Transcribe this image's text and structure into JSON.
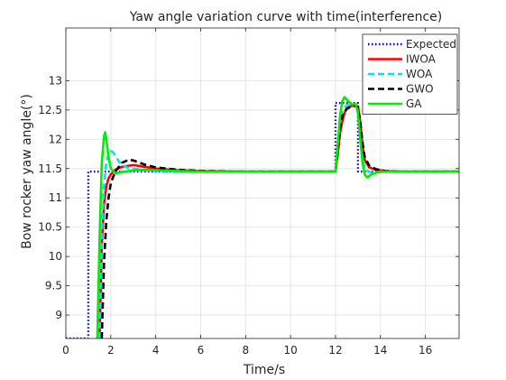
{
  "chart_data": {
    "type": "line",
    "title": "Yaw angle variation curve with time(interference)",
    "xlabel": "Time/s",
    "ylabel": "Bow  rocker yaw angle(°)",
    "xlim": [
      0,
      17.5
    ],
    "ylim": [
      8.6,
      13.9
    ],
    "xticks": [
      0,
      2,
      4,
      6,
      8,
      10,
      12,
      14,
      16
    ],
    "yticks": [
      9,
      9.5,
      10,
      10.5,
      11,
      11.5,
      12,
      12.5,
      13
    ],
    "xtick_labels": [
      "0",
      "2",
      "4",
      "6",
      "8",
      "10",
      "12",
      "14",
      "16"
    ],
    "ytick_labels": [
      "9",
      "9.5",
      "10",
      "10.5",
      "11",
      "11.5",
      "12",
      "12.5",
      "13"
    ],
    "grid": true,
    "legend_position": "top-right",
    "series": [
      {
        "name": "Expected",
        "color": "#0000cc",
        "style": "dotted",
        "x": [
          0,
          1,
          1,
          12,
          12,
          13,
          13,
          17.5
        ],
        "y": [
          8.6,
          8.6,
          11.45,
          11.45,
          12.62,
          12.62,
          11.45,
          11.45
        ]
      },
      {
        "name": "IWOA",
        "color": "#ff0000",
        "style": "solid",
        "x": [
          1.5,
          1.6,
          1.7,
          1.8,
          1.9,
          2.0,
          2.2,
          2.5,
          3.0,
          3.5,
          4.0,
          5.0,
          6.0,
          8.0,
          10.0,
          12.0,
          12.1,
          12.2,
          12.3,
          12.4,
          12.5,
          12.7,
          12.9,
          13.0,
          13.1,
          13.2,
          13.3,
          13.5,
          13.8,
          14.2,
          15.0,
          17.5
        ],
        "y": [
          8.6,
          10.2,
          10.9,
          11.2,
          11.33,
          11.4,
          11.48,
          11.53,
          11.56,
          11.53,
          11.5,
          11.47,
          11.46,
          11.45,
          11.45,
          11.45,
          11.75,
          12.1,
          12.3,
          12.45,
          12.53,
          12.57,
          12.58,
          12.56,
          12.3,
          11.9,
          11.65,
          11.52,
          11.48,
          11.46,
          11.45,
          11.45
        ]
      },
      {
        "name": "WOA",
        "color": "#00e5ee",
        "style": "dashed",
        "x": [
          1.5,
          1.6,
          1.7,
          1.8,
          1.9,
          2.0,
          2.1,
          2.2,
          2.4,
          2.7,
          3.0,
          3.5,
          4.0,
          5.0,
          6.0,
          8.0,
          10.0,
          12.0,
          12.1,
          12.2,
          12.3,
          12.5,
          12.7,
          12.9,
          13.0,
          13.1,
          13.2,
          13.3,
          13.5,
          13.8,
          14.2,
          15.0,
          17.5
        ],
        "y": [
          8.6,
          10.4,
          11.2,
          11.6,
          11.75,
          11.8,
          11.78,
          11.72,
          11.6,
          11.52,
          11.5,
          11.47,
          11.46,
          11.45,
          11.45,
          11.45,
          11.45,
          11.45,
          11.9,
          12.3,
          12.5,
          12.58,
          12.6,
          12.58,
          12.52,
          12.1,
          11.7,
          11.5,
          11.44,
          11.44,
          11.45,
          11.45,
          11.45
        ]
      },
      {
        "name": "GWO",
        "color": "#000000",
        "style": "dashed",
        "x": [
          1.6,
          1.7,
          1.8,
          1.9,
          2.0,
          2.2,
          2.5,
          2.8,
          3.0,
          3.5,
          4.0,
          5.0,
          6.0,
          8.0,
          10.0,
          12.0,
          12.1,
          12.2,
          12.3,
          12.5,
          12.7,
          12.9,
          13.0,
          13.1,
          13.2,
          13.3,
          13.5,
          13.8,
          14.2,
          15.0,
          17.5
        ],
        "y": [
          8.6,
          9.9,
          10.6,
          11.0,
          11.25,
          11.45,
          11.6,
          11.65,
          11.64,
          11.57,
          11.52,
          11.48,
          11.46,
          11.45,
          11.45,
          11.45,
          11.8,
          12.2,
          12.4,
          12.52,
          12.56,
          12.57,
          12.55,
          12.3,
          11.95,
          11.7,
          11.55,
          11.49,
          11.46,
          11.45,
          11.45
        ]
      },
      {
        "name": "GA",
        "color": "#00ee00",
        "style": "solid",
        "x": [
          1.4,
          1.5,
          1.6,
          1.7,
          1.75,
          1.8,
          1.9,
          2.0,
          2.2,
          2.5,
          3.0,
          3.5,
          4.0,
          5.0,
          6.0,
          8.0,
          10.0,
          12.0,
          12.1,
          12.2,
          12.3,
          12.4,
          12.5,
          12.7,
          12.9,
          13.0,
          13.1,
          13.2,
          13.3,
          13.4,
          13.6,
          13.9,
          14.3,
          15.0,
          17.5
        ],
        "y": [
          8.6,
          10.3,
          11.6,
          12.05,
          12.12,
          12.0,
          11.7,
          11.5,
          11.42,
          11.44,
          11.47,
          11.48,
          11.47,
          11.46,
          11.45,
          11.45,
          11.45,
          11.45,
          11.9,
          12.4,
          12.65,
          12.72,
          12.68,
          12.6,
          12.6,
          12.45,
          12.0,
          11.6,
          11.4,
          11.35,
          11.4,
          11.44,
          11.45,
          11.45,
          11.45
        ]
      }
    ]
  }
}
